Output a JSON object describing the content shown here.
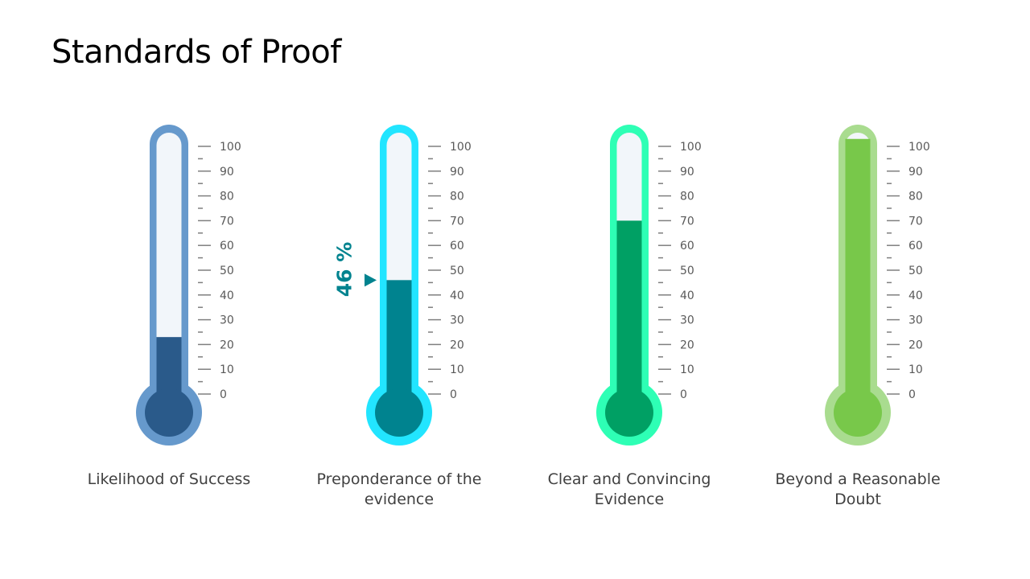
{
  "title": "Standards of Proof",
  "chart_data": {
    "type": "thermometer",
    "title": "Standards of Proof",
    "scale": {
      "min": 0,
      "max": 100,
      "major_step": 10,
      "minor_step": 5
    },
    "tick_labels": [
      "0",
      "10",
      "20",
      "30",
      "40",
      "50",
      "60",
      "70",
      "80",
      "90",
      "100"
    ],
    "series": [
      {
        "label": "Likelihood of Success",
        "value": 23,
        "border_color": "#6699cc",
        "fill_color": "#2a5a8a"
      },
      {
        "label": "Preponderance of the evidence",
        "value": 46,
        "border_color": "#22e5ff",
        "fill_color": "#00838f",
        "annotation": "46 %"
      },
      {
        "label": "Clear and Convincing Evidence",
        "value": 70,
        "border_color": "#2effb5",
        "fill_color": "#00a064"
      },
      {
        "label": "Beyond a Reasonable Doubt",
        "value": 103,
        "border_color": "#a9dc8f",
        "fill_color": "#78c84a"
      }
    ],
    "track_color": "#f2f6fa",
    "tick_color": "#7f7f7f"
  }
}
